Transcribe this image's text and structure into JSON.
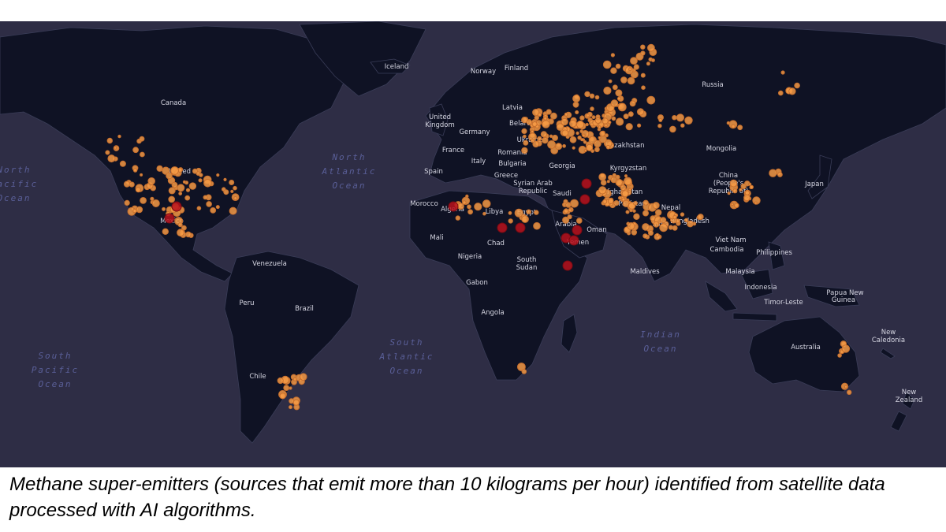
{
  "map": {
    "colors": {
      "ocean": "#2e2d45",
      "land": "#0f1224",
      "border": "#3a3d58",
      "emitter_small": "#f59a45",
      "emitter_large": "#b8121c"
    },
    "country_labels": [
      {
        "text": "Iceland"
      },
      {
        "text": "Norway"
      },
      {
        "text": "Finland"
      },
      {
        "text": "Russia"
      },
      {
        "text": "Canada"
      },
      {
        "text": "Latvia"
      },
      {
        "text": "United"
      },
      {
        "text": "Kingdom"
      },
      {
        "text": "Germany"
      },
      {
        "text": "Belarus"
      },
      {
        "text": "Ukraine"
      },
      {
        "text": "France"
      },
      {
        "text": "Italy"
      },
      {
        "text": "Romania"
      },
      {
        "text": "Bulgaria"
      },
      {
        "text": "Kazakhstan"
      },
      {
        "text": "Mongolia"
      },
      {
        "text": "Georgia"
      },
      {
        "text": "Spain"
      },
      {
        "text": "Greece"
      },
      {
        "text": "Kyrgyzstan"
      },
      {
        "text": "United"
      },
      {
        "text": "Syrian Arab"
      },
      {
        "text": "Republic"
      },
      {
        "text": "Afghanistan"
      },
      {
        "text": "China"
      },
      {
        "text": "(People's"
      },
      {
        "text": "Republic of)"
      },
      {
        "text": "Japan"
      },
      {
        "text": "Morocco"
      },
      {
        "text": "Algeria"
      },
      {
        "text": "Libya"
      },
      {
        "text": "Egypt"
      },
      {
        "text": "Saudi"
      },
      {
        "text": "Arabia"
      },
      {
        "text": "Pakistan"
      },
      {
        "text": "Nepal"
      },
      {
        "text": "Bangladesh"
      },
      {
        "text": "India"
      },
      {
        "text": "Mexico"
      },
      {
        "text": "Mali"
      },
      {
        "text": "Chad"
      },
      {
        "text": "Oman"
      },
      {
        "text": "Yemen"
      },
      {
        "text": "Viet Nam"
      },
      {
        "text": "Cambodia"
      },
      {
        "text": "Philippines"
      },
      {
        "text": "Nigeria"
      },
      {
        "text": "South"
      },
      {
        "text": "Sudan"
      },
      {
        "text": "Venezuela"
      },
      {
        "text": "Maldives"
      },
      {
        "text": "Malaysia"
      },
      {
        "text": "Gabon"
      },
      {
        "text": "Indonesia"
      },
      {
        "text": "Papua New"
      },
      {
        "text": "Guinea"
      },
      {
        "text": "Peru"
      },
      {
        "text": "Brazil"
      },
      {
        "text": "Timor-Leste"
      },
      {
        "text": "Angola"
      },
      {
        "text": "Australia"
      },
      {
        "text": "New"
      },
      {
        "text": "Caledonia"
      },
      {
        "text": "Chile"
      },
      {
        "text": "New"
      },
      {
        "text": "Zealand"
      }
    ],
    "ocean_labels": [
      {
        "lines": [
          "North",
          "Atlantic",
          "Ocean"
        ]
      },
      {
        "lines": [
          "North",
          "Pacific",
          "Ocean"
        ]
      },
      {
        "lines": [
          "South",
          "Atlantic",
          "Ocean"
        ]
      },
      {
        "lines": [
          "South",
          "Pacific",
          "Ocean"
        ]
      },
      {
        "lines": [
          "Indian",
          "Ocean"
        ]
      }
    ]
  },
  "caption": "Methane super-emitters (sources that emit more than 10 kilograms per hour) identified from satellite data processed with AI algorithms."
}
